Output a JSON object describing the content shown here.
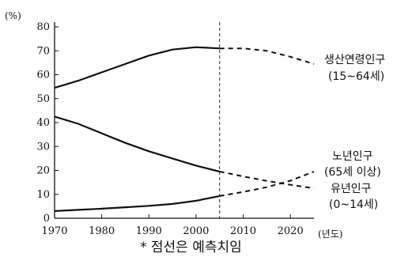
{
  "chart_data": {
    "type": "line",
    "y_unit": "(%)",
    "x_unit": "(년도)",
    "xlim": [
      1970,
      2025
    ],
    "ylim": [
      0,
      80
    ],
    "x_ticks": [
      "1970",
      "1980",
      "1990",
      "2000",
      "2010",
      "2020"
    ],
    "y_ticks": [
      "0",
      "10",
      "20",
      "30",
      "40",
      "50",
      "60",
      "70",
      "80"
    ],
    "divider_x": 2005,
    "legend": "direct labels at line ends (right)",
    "grid": false,
    "series": [
      {
        "name": "생산연령인구",
        "sub_label": "(15~64세)",
        "actual": [
          [
            1970,
            54.5
          ],
          [
            1975,
            57.5
          ],
          [
            1980,
            61
          ],
          [
            1985,
            64.5
          ],
          [
            1990,
            68
          ],
          [
            1995,
            70.5
          ],
          [
            2000,
            71.5
          ],
          [
            2005,
            71
          ]
        ],
        "projected": [
          [
            2005,
            71
          ],
          [
            2010,
            71
          ],
          [
            2015,
            70
          ],
          [
            2020,
            67.5
          ],
          [
            2025,
            64.5
          ]
        ]
      },
      {
        "name": "노년인구",
        "sub_label": "(65세 이상)",
        "actual": [
          [
            1970,
            3
          ],
          [
            1975,
            3.5
          ],
          [
            1980,
            4
          ],
          [
            1985,
            4.6
          ],
          [
            1990,
            5.2
          ],
          [
            1995,
            6
          ],
          [
            2000,
            7.3
          ],
          [
            2005,
            9.3
          ]
        ],
        "projected": [
          [
            2005,
            9.3
          ],
          [
            2010,
            11
          ],
          [
            2015,
            13
          ],
          [
            2020,
            15.7
          ],
          [
            2025,
            19.5
          ]
        ]
      },
      {
        "name": "유년인구",
        "sub_label": "(0~14세)",
        "actual": [
          [
            1970,
            42.5
          ],
          [
            1975,
            39.5
          ],
          [
            1980,
            35.5
          ],
          [
            1985,
            31.5
          ],
          [
            1990,
            28
          ],
          [
            1995,
            25
          ],
          [
            2000,
            22
          ],
          [
            2005,
            19.5
          ]
        ],
        "projected": [
          [
            2005,
            19.5
          ],
          [
            2010,
            17.5
          ],
          [
            2015,
            15.6
          ],
          [
            2020,
            14
          ],
          [
            2025,
            12.5
          ]
        ]
      }
    ],
    "footnote": "* 점선은 예측치임"
  }
}
